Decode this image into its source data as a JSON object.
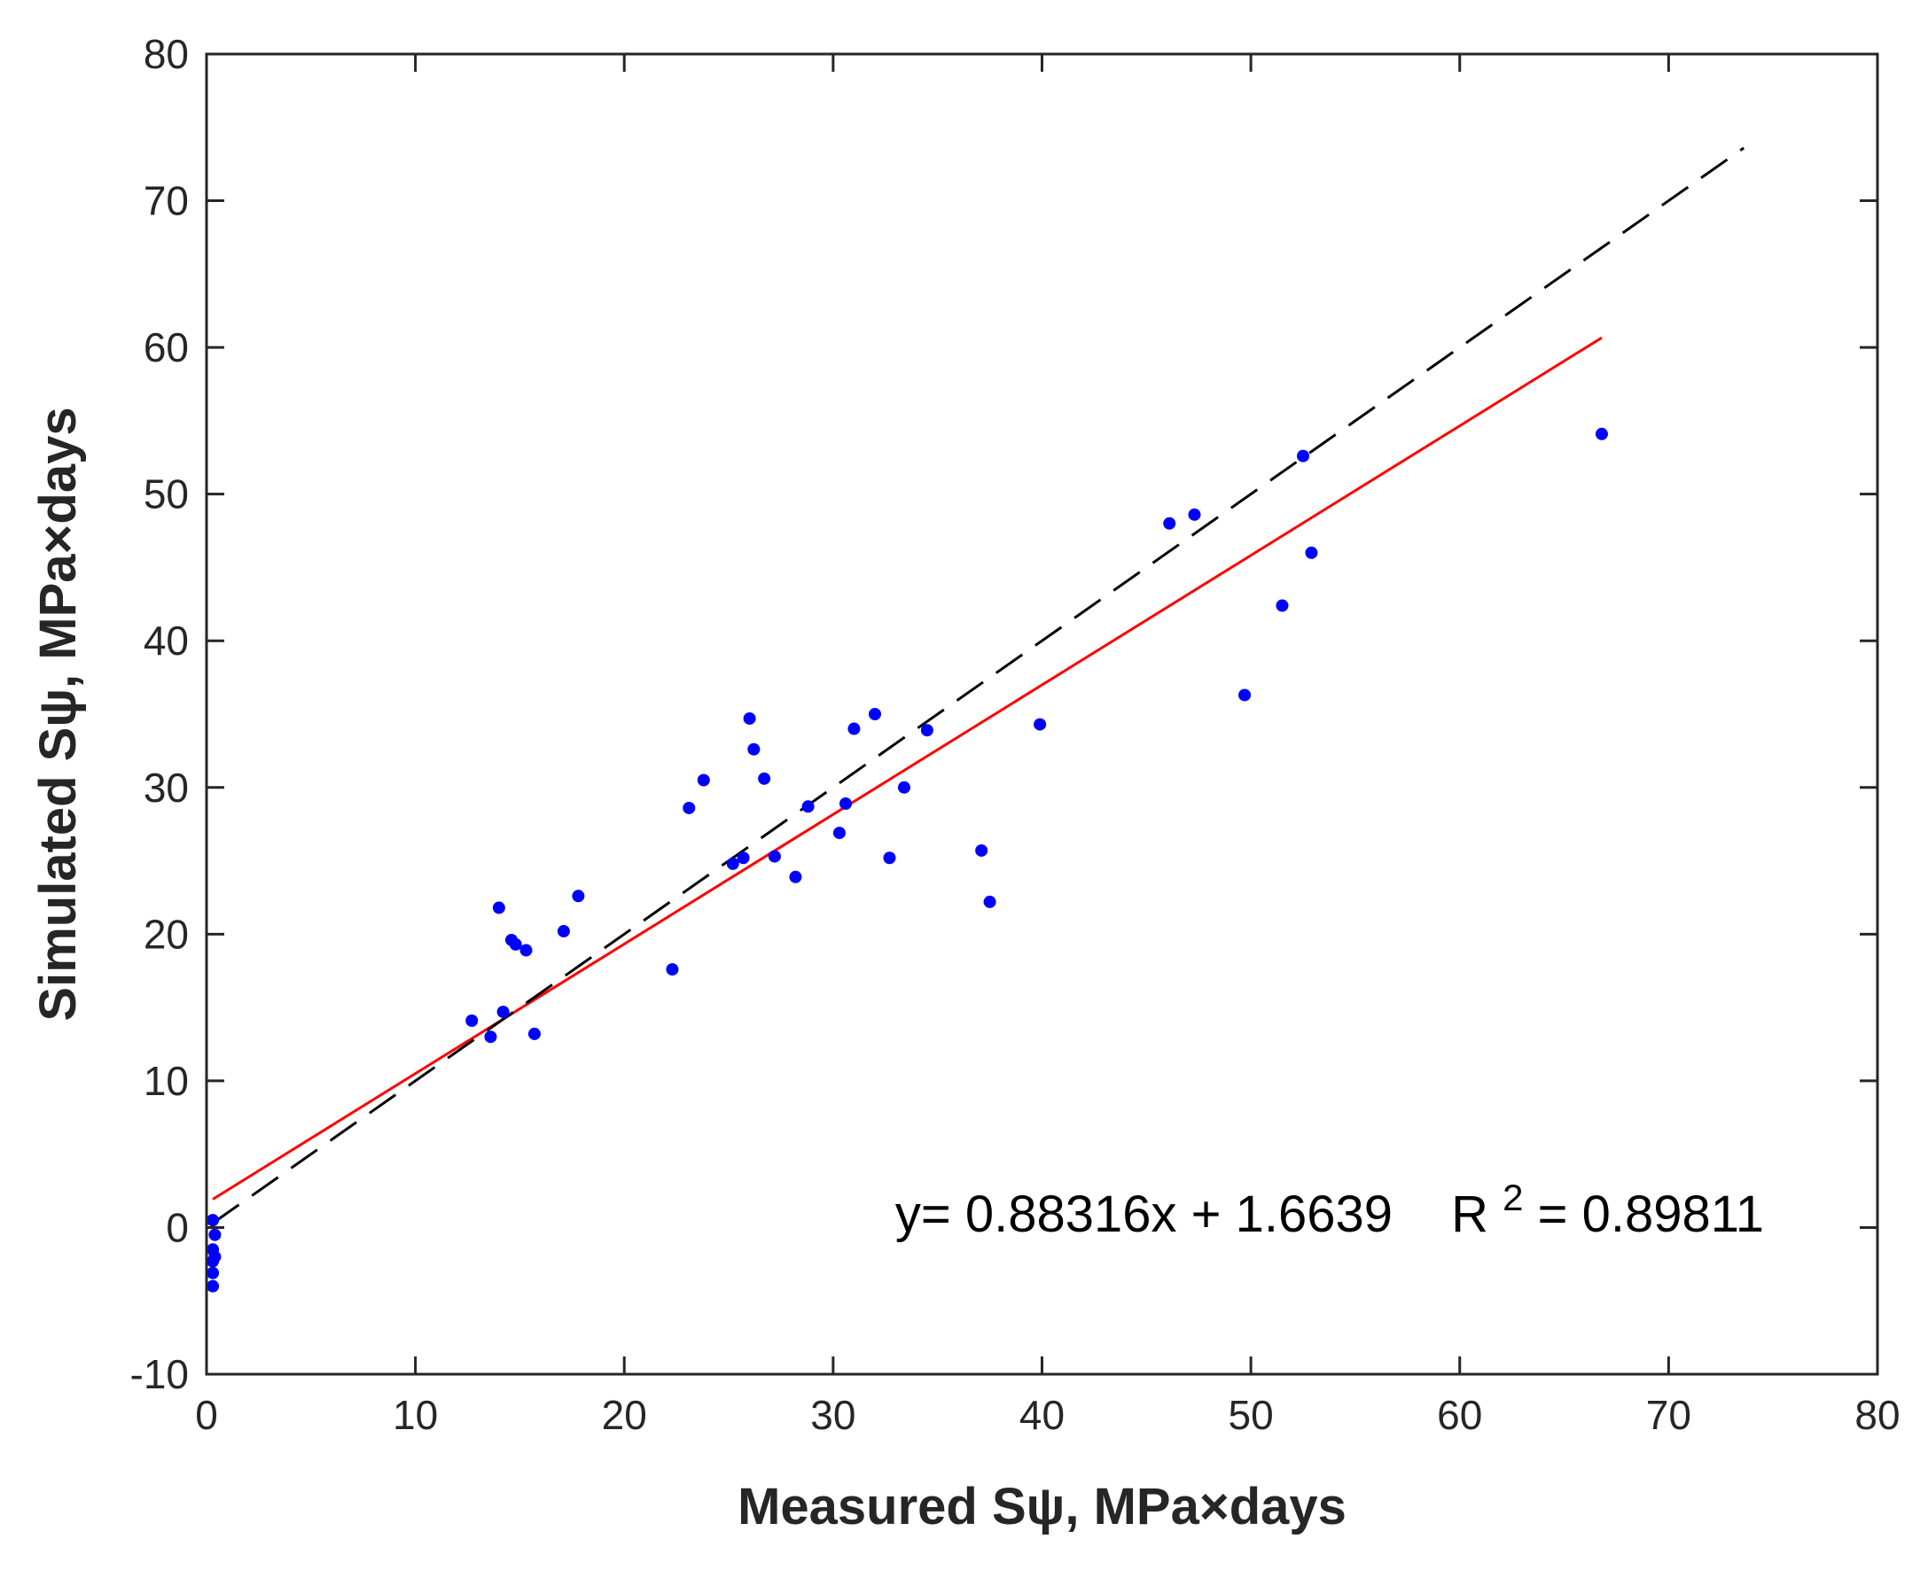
{
  "chart_data": {
    "type": "scatter",
    "title": "",
    "xlabel": "Measured Sψ, MPa×days",
    "ylabel": "Simulated Sψ, MPa×days",
    "xlim": [
      0,
      80
    ],
    "ylim": [
      -10,
      80
    ],
    "xticks": [
      0,
      10,
      20,
      30,
      40,
      50,
      60,
      70,
      80
    ],
    "yticks": [
      -10,
      0,
      10,
      20,
      30,
      40,
      50,
      60,
      70,
      80
    ],
    "xtick_labels": [
      "0",
      "10",
      "20",
      "30",
      "40",
      "50",
      "60",
      "70",
      "80"
    ],
    "ytick_labels": [
      "-10",
      "0",
      "10",
      "20",
      "30",
      "40",
      "50",
      "60",
      "70",
      "80"
    ],
    "grid": false,
    "series": [
      {
        "name": "observations",
        "type": "scatter",
        "color": "#0000ff",
        "points": [
          [
            0.3,
            0.5
          ],
          [
            0.4,
            -0.5
          ],
          [
            0.3,
            -1.5
          ],
          [
            0.4,
            -2.0
          ],
          [
            0.3,
            -2.3
          ],
          [
            0.3,
            -3.1
          ],
          [
            0.3,
            -4.0
          ],
          [
            12.7,
            14.1
          ],
          [
            13.6,
            13.0
          ],
          [
            14.0,
            21.8
          ],
          [
            14.2,
            14.7
          ],
          [
            14.6,
            19.6
          ],
          [
            14.8,
            19.3
          ],
          [
            15.3,
            18.9
          ],
          [
            15.7,
            13.2
          ],
          [
            17.1,
            20.2
          ],
          [
            17.8,
            22.6
          ],
          [
            22.3,
            17.6
          ],
          [
            23.1,
            28.6
          ],
          [
            23.8,
            30.5
          ],
          [
            25.2,
            24.8
          ],
          [
            25.7,
            25.2
          ],
          [
            26.0,
            34.7
          ],
          [
            26.2,
            32.6
          ],
          [
            26.7,
            30.6
          ],
          [
            27.2,
            25.3
          ],
          [
            28.2,
            23.9
          ],
          [
            28.8,
            28.7
          ],
          [
            30.3,
            26.9
          ],
          [
            30.6,
            28.9
          ],
          [
            31.0,
            34.0
          ],
          [
            32.0,
            35.0
          ],
          [
            32.7,
            25.2
          ],
          [
            33.4,
            30.0
          ],
          [
            34.5,
            33.9
          ],
          [
            37.1,
            25.7
          ],
          [
            37.5,
            22.2
          ],
          [
            39.9,
            34.3
          ],
          [
            46.1,
            48.0
          ],
          [
            47.3,
            48.6
          ],
          [
            49.7,
            36.3
          ],
          [
            51.5,
            42.4
          ],
          [
            52.5,
            52.6
          ],
          [
            52.9,
            46.0
          ],
          [
            66.8,
            54.1
          ]
        ]
      },
      {
        "name": "linear fit",
        "type": "line",
        "color": "#ff0000",
        "style": "solid",
        "x": [
          0.3,
          66.8
        ],
        "y": [
          1.93,
          60.66
        ]
      },
      {
        "name": "1:1 line",
        "type": "line",
        "color": "#000000",
        "style": "dashed",
        "x": [
          0.3,
          73.6
        ],
        "y": [
          0.3,
          73.6
        ]
      }
    ],
    "annotation": {
      "equation": "y= 0.88316x + 1.6639",
      "r2_label": "R",
      "r2_superscript": "2",
      "r2_value": "= 0.89811",
      "location": "lower-right"
    }
  }
}
